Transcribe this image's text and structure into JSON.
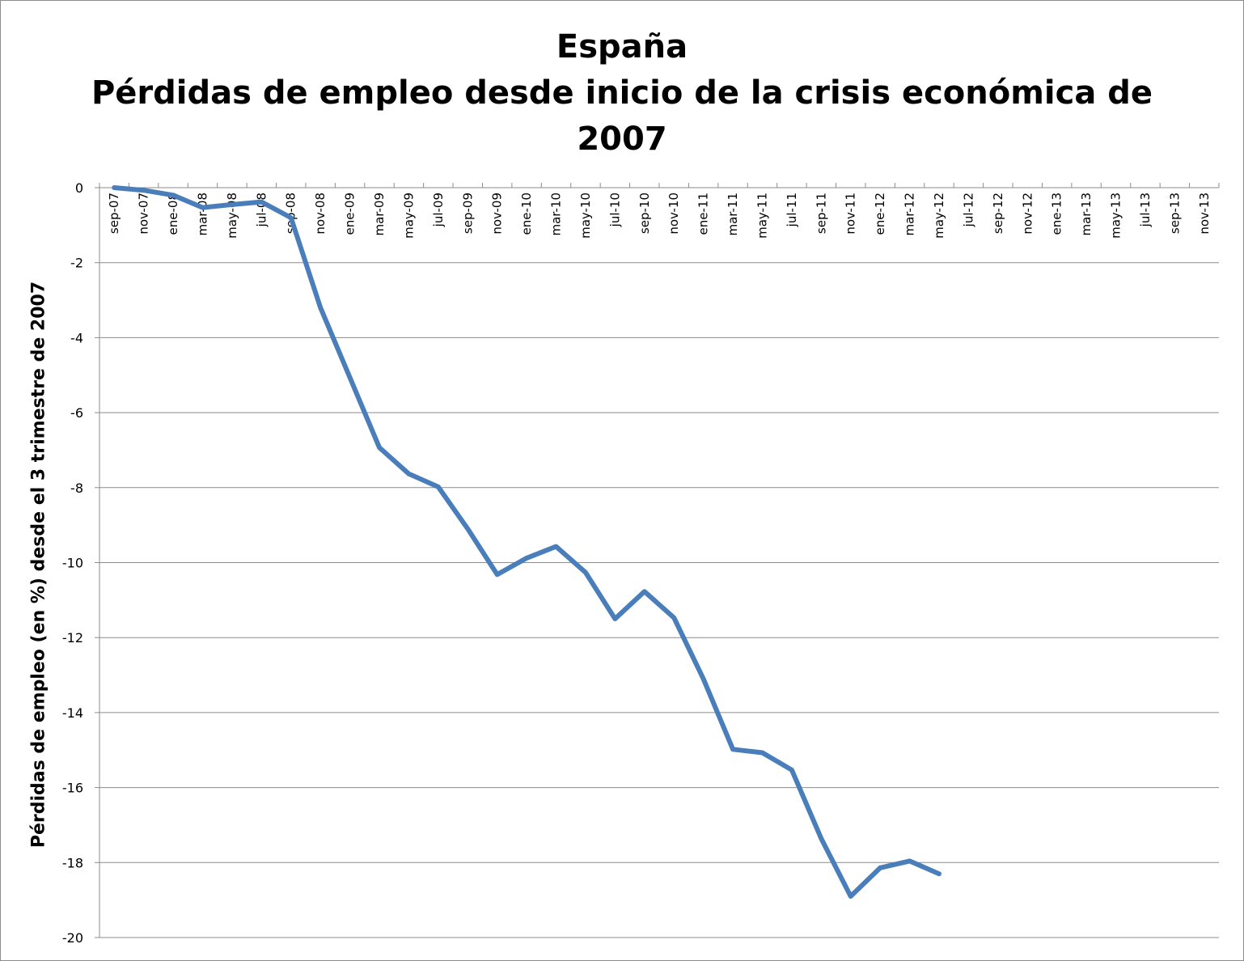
{
  "chart_data": {
    "type": "line",
    "title": [
      "España",
      "Pérdidas de empleo desde inicio de la crisis económica de",
      "2007"
    ],
    "xlabel": "",
    "ylabel": "Pérdidas de empleo (en %) desde el 3 trimestre de 2007",
    "ylim": [
      -20,
      0
    ],
    "yticks": [
      0,
      -2,
      -4,
      -6,
      -8,
      -10,
      -12,
      -14,
      -16,
      -18,
      -20
    ],
    "categories": [
      "sep-07",
      "nov-07",
      "ene-08",
      "mar-08",
      "may-08",
      "jul-08",
      "sep-08",
      "nov-08",
      "ene-09",
      "mar-09",
      "may-09",
      "jul-09",
      "sep-09",
      "nov-09",
      "ene-10",
      "mar-10",
      "may-10",
      "jul-10",
      "sep-10",
      "nov-10",
      "ene-11",
      "mar-11",
      "may-11",
      "jul-11",
      "sep-11",
      "nov-11",
      "ene-12",
      "mar-12",
      "may-12",
      "jul-12",
      "sep-12",
      "nov-12",
      "ene-13",
      "mar-13",
      "may-13",
      "jul-13",
      "sep-13",
      "nov-13"
    ],
    "series": [
      {
        "color": "#4a7ebb",
        "points": [
          {
            "x": "sep-07",
            "y": 0
          },
          {
            "x": "nov-07",
            "y": -0.07
          },
          {
            "x": "ene-08",
            "y": -0.2
          },
          {
            "x": "mar-08",
            "y": -0.53
          },
          {
            "x": "may-08",
            "y": -0.45
          },
          {
            "x": "jul-08",
            "y": -0.38
          },
          {
            "x": "sep-08",
            "y": -0.8
          },
          {
            "x": "nov-08",
            "y": -3.2
          },
          {
            "x": "mar-09",
            "y": -6.93
          },
          {
            "x": "may-09",
            "y": -7.63
          },
          {
            "x": "jul-09",
            "y": -7.98
          },
          {
            "x": "sep-09",
            "y": -9.1
          },
          {
            "x": "nov-09",
            "y": -10.32
          },
          {
            "x": "ene-10",
            "y": -9.88
          },
          {
            "x": "mar-10",
            "y": -9.57
          },
          {
            "x": "may-10",
            "y": -10.26
          },
          {
            "x": "jul-10",
            "y": -11.5
          },
          {
            "x": "sep-10",
            "y": -10.77
          },
          {
            "x": "nov-10",
            "y": -11.47
          },
          {
            "x": "ene-11",
            "y": -13.1
          },
          {
            "x": "mar-11",
            "y": -14.98
          },
          {
            "x": "may-11",
            "y": -15.07
          },
          {
            "x": "jul-11",
            "y": -15.53
          },
          {
            "x": "sep-11",
            "y": -17.36
          },
          {
            "x": "nov-11",
            "y": -18.9
          },
          {
            "x": "ene-12",
            "y": -18.14
          },
          {
            "x": "mar-12",
            "y": -17.96
          },
          {
            "x": "may-12",
            "y": -18.3
          }
        ]
      }
    ],
    "grid": true,
    "legend": "none"
  }
}
